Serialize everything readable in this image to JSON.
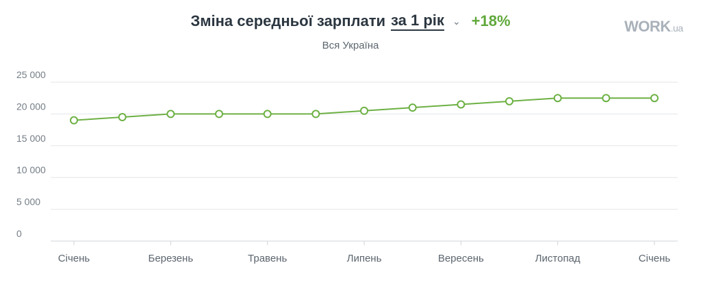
{
  "header": {
    "title": "Зміна середньої зарплати",
    "period": "за 1 рік",
    "change": "+18%",
    "subtitle": "Вся Україна"
  },
  "logo": {
    "main": "WORK",
    "suffix": ".ua"
  },
  "colors": {
    "line": "#6cb043",
    "title": "#2b3640",
    "positive": "#5fa83a",
    "grid": "#e3e6e9"
  },
  "chart_data": {
    "type": "line",
    "x": [
      "Січень",
      "",
      "Березень",
      "",
      "Травень",
      "",
      "Липень",
      "",
      "Вересень",
      "",
      "Листопад",
      "",
      "Січень"
    ],
    "series": [
      {
        "values": [
          19000,
          19500,
          20000,
          20000,
          20000,
          20000,
          20500,
          21000,
          21500,
          22000,
          22500,
          22500,
          22500
        ]
      }
    ],
    "yticks": [
      "0",
      "5 000",
      "10 000",
      "15 000",
      "20 000",
      "25 000"
    ],
    "xticks": [
      "Січень",
      "Березень",
      "Травень",
      "Липень",
      "Вересень",
      "Листопад",
      "Січень"
    ],
    "ylim": [
      0,
      25000
    ],
    "grid": true
  }
}
